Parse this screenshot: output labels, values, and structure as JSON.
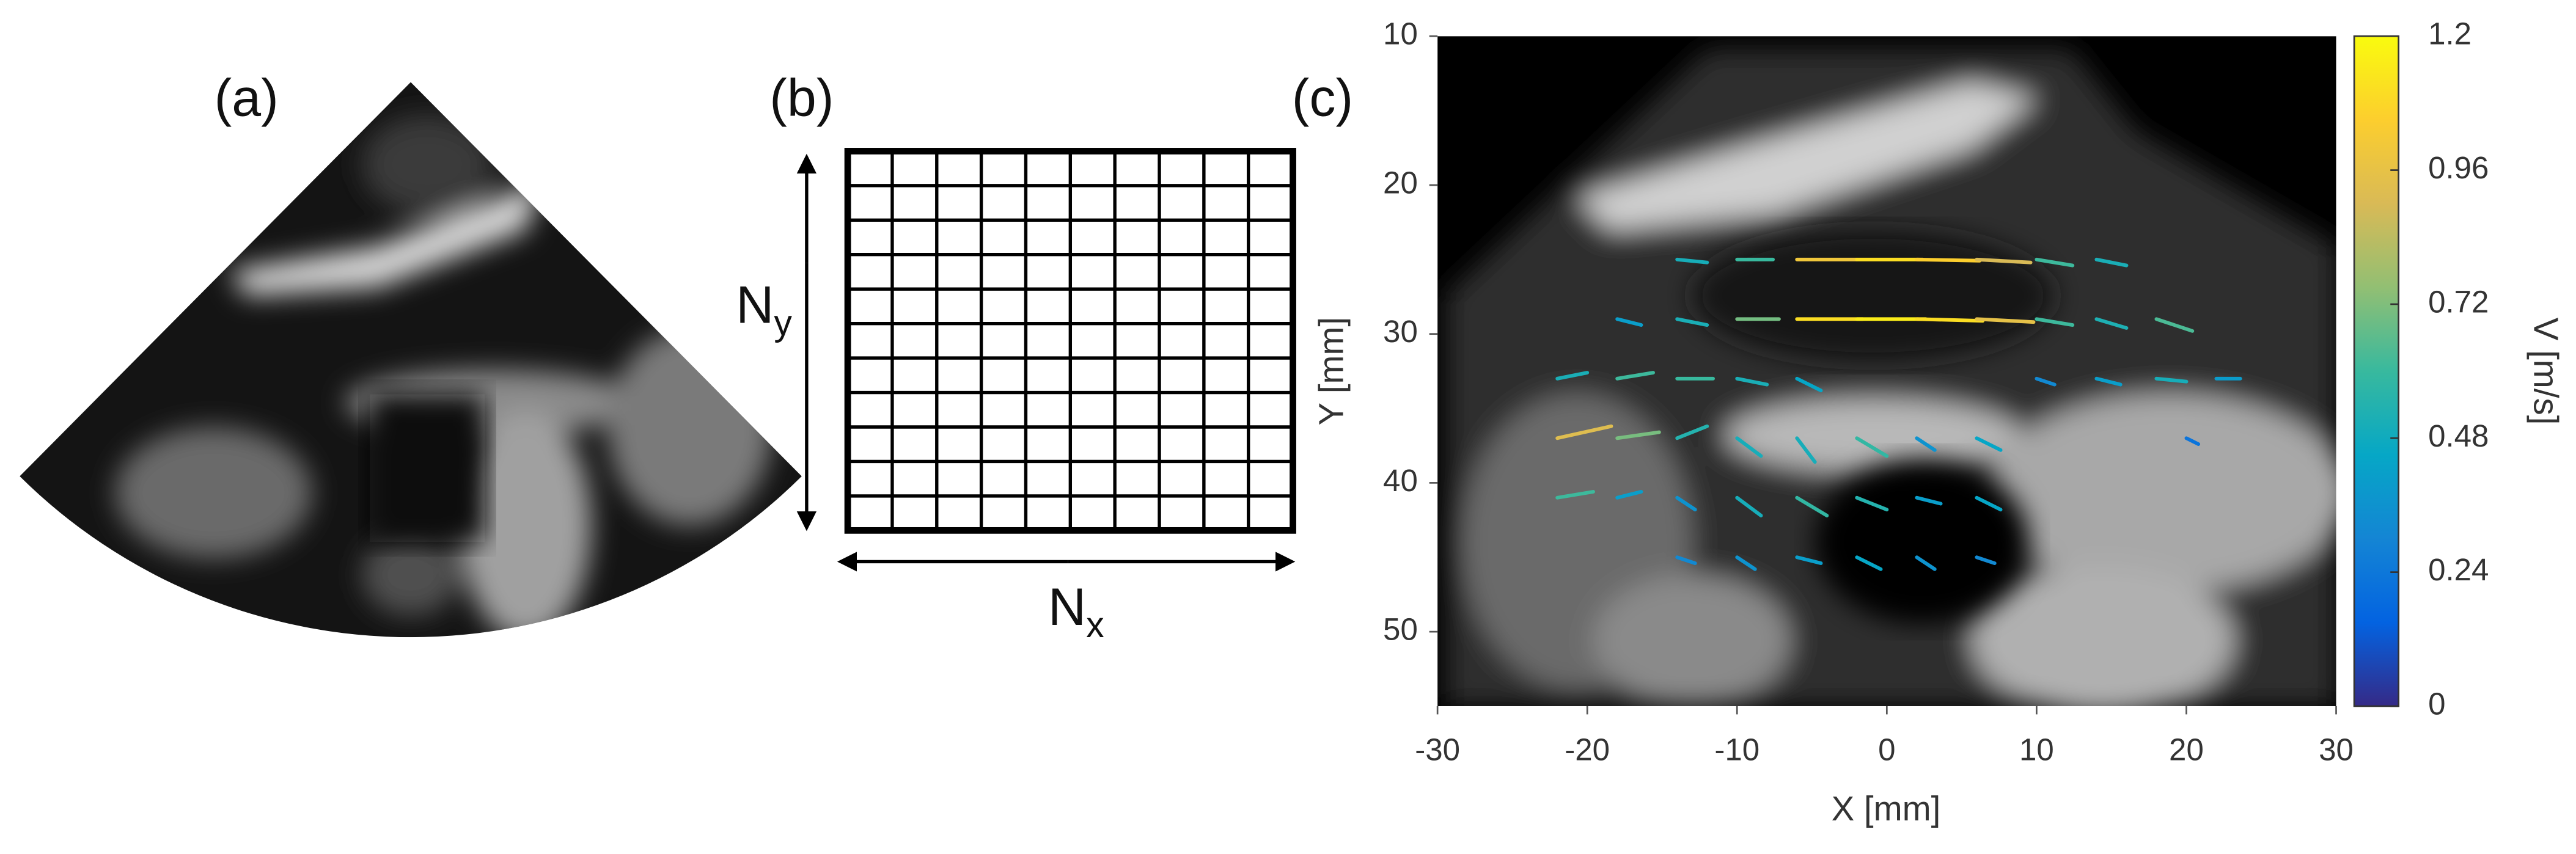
{
  "panels": {
    "a": {
      "label": "(a)"
    },
    "b": {
      "label": "(b)",
      "ny": {
        "main": "N",
        "sub": "y"
      },
      "nx": {
        "main": "N",
        "sub": "x"
      }
    }
  },
  "chart_data": {
    "type": "quiver",
    "label": "(c)",
    "x_label": "X [mm]",
    "y_label": "Y [mm]",
    "xlim": [
      -30,
      30
    ],
    "xticks": [
      -30,
      -20,
      -10,
      0,
      10,
      20,
      30
    ],
    "ylim": [
      10,
      55
    ],
    "yticks": [
      10,
      20,
      30,
      40,
      50
    ],
    "y_inverted": true,
    "colorbar": {
      "label": "V [m/s]",
      "clim": [
        0,
        1.2
      ],
      "ticks": [
        0,
        0.24,
        0.48,
        0.72,
        0.96,
        1.2
      ],
      "colormap": [
        "#352a87",
        "#0363e1",
        "#1485d4",
        "#06a7c6",
        "#38b99e",
        "#92bf73",
        "#d9ba56",
        "#fcce2e",
        "#f9fb0e"
      ]
    },
    "vectors": [
      {
        "x": -14,
        "y": 25,
        "u": 0.5,
        "v": 0.05
      },
      {
        "x": -10,
        "y": 25,
        "u": 0.6,
        "v": 0
      },
      {
        "x": -6,
        "y": 25,
        "u": 1.0,
        "v": 0
      },
      {
        "x": -2,
        "y": 25,
        "u": 1.1,
        "v": 0
      },
      {
        "x": 2,
        "y": 25,
        "u": 1.05,
        "v": 0.02
      },
      {
        "x": 6,
        "y": 25,
        "u": 0.9,
        "v": 0.05
      },
      {
        "x": 10,
        "y": 25,
        "u": 0.6,
        "v": 0.1
      },
      {
        "x": 14,
        "y": 25,
        "u": 0.5,
        "v": 0.1
      },
      {
        "x": -18,
        "y": 29,
        "u": 0.4,
        "v": 0.1
      },
      {
        "x": -14,
        "y": 29,
        "u": 0.5,
        "v": 0.1
      },
      {
        "x": -10,
        "y": 29,
        "u": 0.7,
        "v": 0
      },
      {
        "x": -6,
        "y": 29,
        "u": 1.1,
        "v": 0
      },
      {
        "x": -2,
        "y": 29,
        "u": 1.15,
        "v": 0
      },
      {
        "x": 2,
        "y": 29,
        "u": 1.1,
        "v": 0.03
      },
      {
        "x": 6,
        "y": 29,
        "u": 0.95,
        "v": 0.05
      },
      {
        "x": 10,
        "y": 29,
        "u": 0.6,
        "v": 0.1
      },
      {
        "x": 14,
        "y": 29,
        "u": 0.5,
        "v": 0.15
      },
      {
        "x": 18,
        "y": 29,
        "u": 0.6,
        "v": 0.2
      },
      {
        "x": -22,
        "y": 33,
        "u": 0.5,
        "v": -0.1
      },
      {
        "x": -18,
        "y": 33,
        "u": 0.6,
        "v": -0.1
      },
      {
        "x": -14,
        "y": 33,
        "u": 0.6,
        "v": 0
      },
      {
        "x": -10,
        "y": 33,
        "u": 0.5,
        "v": 0.1
      },
      {
        "x": -6,
        "y": 33,
        "u": 0.4,
        "v": 0.2
      },
      {
        "x": 10,
        "y": 33,
        "u": 0.3,
        "v": 0.1
      },
      {
        "x": 14,
        "y": 33,
        "u": 0.4,
        "v": 0.1
      },
      {
        "x": 18,
        "y": 33,
        "u": 0.5,
        "v": 0.05
      },
      {
        "x": 22,
        "y": 33,
        "u": 0.4,
        "v": 0
      },
      {
        "x": -22,
        "y": 37,
        "u": 0.9,
        "v": -0.2
      },
      {
        "x": -18,
        "y": 37,
        "u": 0.7,
        "v": -0.1
      },
      {
        "x": -14,
        "y": 37,
        "u": 0.5,
        "v": -0.2
      },
      {
        "x": -10,
        "y": 37,
        "u": 0.4,
        "v": 0.3
      },
      {
        "x": -6,
        "y": 37,
        "u": 0.3,
        "v": 0.4
      },
      {
        "x": -2,
        "y": 37,
        "u": 0.5,
        "v": 0.3
      },
      {
        "x": 2,
        "y": 37,
        "u": 0.3,
        "v": 0.2
      },
      {
        "x": 6,
        "y": 37,
        "u": 0.4,
        "v": 0.2
      },
      {
        "x": 20,
        "y": 37,
        "u": 0.2,
        "v": 0.1
      },
      {
        "x": -22,
        "y": 41,
        "u": 0.6,
        "v": -0.1
      },
      {
        "x": -18,
        "y": 41,
        "u": 0.4,
        "v": -0.1
      },
      {
        "x": -14,
        "y": 41,
        "u": 0.3,
        "v": 0.2
      },
      {
        "x": -10,
        "y": 41,
        "u": 0.4,
        "v": 0.3
      },
      {
        "x": -6,
        "y": 41,
        "u": 0.5,
        "v": 0.3
      },
      {
        "x": -2,
        "y": 41,
        "u": 0.5,
        "v": 0.2
      },
      {
        "x": 2,
        "y": 41,
        "u": 0.4,
        "v": 0.1
      },
      {
        "x": 6,
        "y": 41,
        "u": 0.4,
        "v": 0.2
      },
      {
        "x": -14,
        "y": 45,
        "u": 0.3,
        "v": 0.1
      },
      {
        "x": -10,
        "y": 45,
        "u": 0.3,
        "v": 0.2
      },
      {
        "x": -6,
        "y": 45,
        "u": 0.4,
        "v": 0.1
      },
      {
        "x": -2,
        "y": 45,
        "u": 0.4,
        "v": 0.2
      },
      {
        "x": 2,
        "y": 45,
        "u": 0.3,
        "v": 0.2
      },
      {
        "x": 6,
        "y": 45,
        "u": 0.3,
        "v": 0.1
      }
    ]
  }
}
